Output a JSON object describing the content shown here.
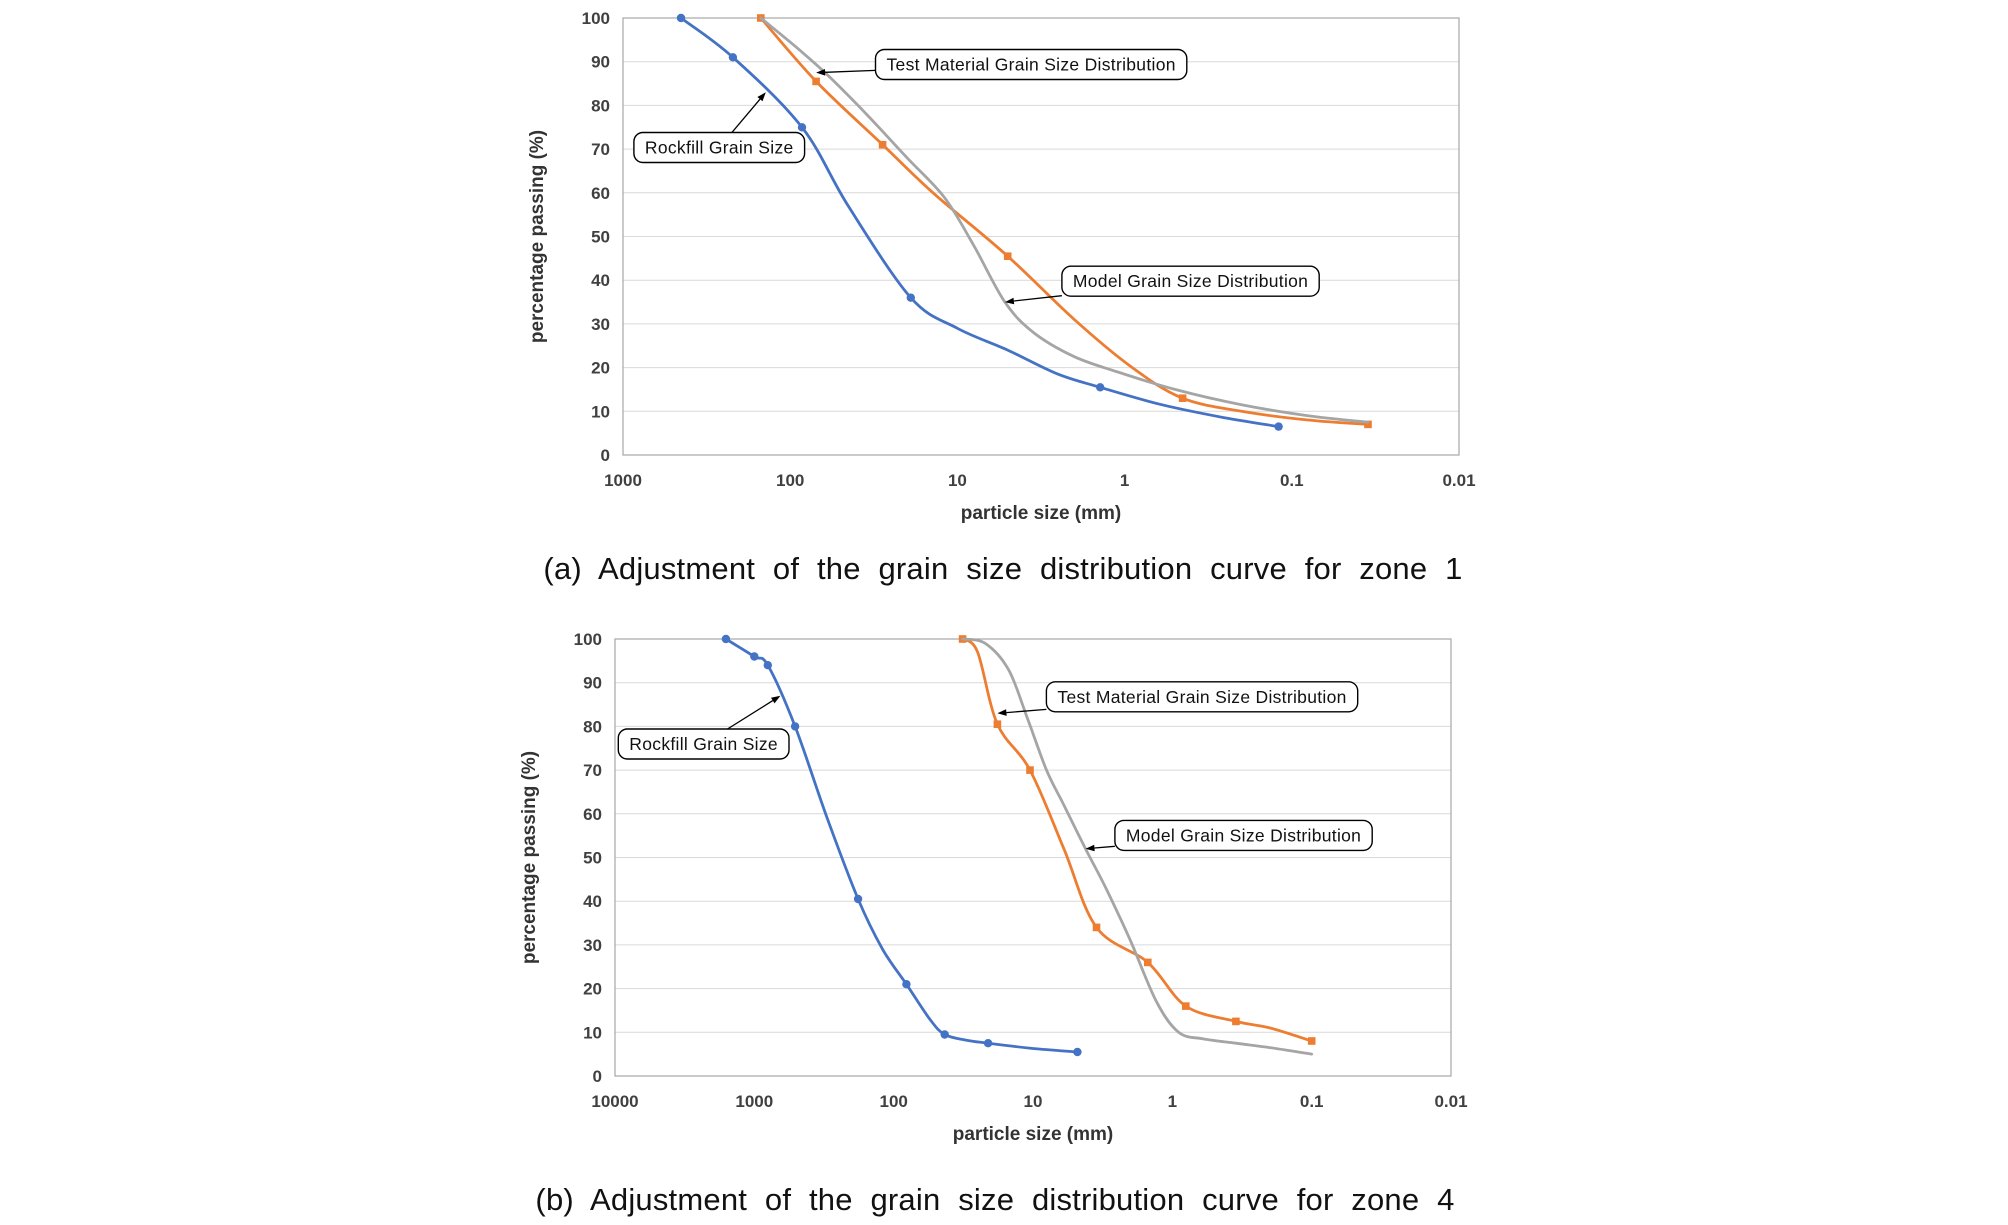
{
  "page": {
    "background": "#ffffff"
  },
  "theme": {
    "series_blue": "#4472C4",
    "series_orange": "#ED7D31",
    "series_gray": "#A5A5A5",
    "gridline": "#D9D9D9",
    "plot_border": "#A6A6A6",
    "tick_text": "#404040",
    "axis_title_text": "#333333",
    "annotation_border": "#000000"
  },
  "chart_data": [
    {
      "type": "line",
      "caption": "(a) Adjustment of the grain size distribution curve for zone 1",
      "xlabel": "particle size (mm)",
      "ylabel": "percentage passing (%)",
      "x_scale": "log-reversed",
      "x_ticks": [
        1000,
        100,
        10,
        1,
        0.1,
        0.01
      ],
      "y_ticks": [
        0,
        10,
        20,
        30,
        40,
        50,
        60,
        70,
        80,
        90,
        100
      ],
      "ylim": [
        0,
        100
      ],
      "grid": "horizontal",
      "legend": "annotation-callouts",
      "series": [
        {
          "name": "Rockfill Grain Size",
          "color": "#4472C4",
          "marker": "circle",
          "points": [
            [
              450,
              100
            ],
            [
              220,
              91
            ],
            [
              85,
              75
            ],
            [
              45,
              57
            ],
            [
              19,
              36
            ],
            [
              10,
              29
            ],
            [
              5,
              24
            ],
            [
              2.5,
              18.5
            ],
            [
              1.4,
              15.5
            ],
            [
              0.6,
              11.5
            ],
            [
              0.25,
              8.5
            ],
            [
              0.12,
              6.5
            ]
          ],
          "marker_points": [
            [
              450,
              100
            ],
            [
              220,
              91
            ],
            [
              85,
              75
            ],
            [
              19,
              36
            ],
            [
              1.4,
              15.5
            ],
            [
              0.12,
              6.5
            ]
          ]
        },
        {
          "name": "Test Material Grain Size Distribution",
          "color": "#ED7D31",
          "marker": "square",
          "points": [
            [
              150,
              100
            ],
            [
              70,
              85.5
            ],
            [
              28,
              71
            ],
            [
              14,
              60
            ],
            [
              5,
              45.5
            ],
            [
              2,
              31
            ],
            [
              0.9,
              20
            ],
            [
              0.45,
              13
            ],
            [
              0.2,
              10
            ],
            [
              0.08,
              8
            ],
            [
              0.035,
              7
            ]
          ],
          "marker_points": [
            [
              150,
              100
            ],
            [
              70,
              85.5
            ],
            [
              28,
              71
            ],
            [
              5,
              45.5
            ],
            [
              0.45,
              13
            ],
            [
              0.035,
              7
            ]
          ]
        },
        {
          "name": "Model Grain Size Distribution",
          "color": "#A5A5A5",
          "marker": "none",
          "points": [
            [
              150,
              100
            ],
            [
              90,
              93
            ],
            [
              60,
              87
            ],
            [
              35,
              78
            ],
            [
              20,
              68
            ],
            [
              12,
              59
            ],
            [
              8,
              48
            ],
            [
              5.2,
              35
            ],
            [
              3.5,
              28
            ],
            [
              2,
              22.5
            ],
            [
              1.1,
              19
            ],
            [
              0.5,
              15
            ],
            [
              0.2,
              11.5
            ],
            [
              0.08,
              9
            ],
            [
              0.035,
              7.5
            ]
          ],
          "marker_points": []
        }
      ],
      "annotations": [
        {
          "label": "Test Material Grain Size Distribution",
          "box_fx": 0.302,
          "box_fy": 0.072,
          "target_x": 70,
          "target_y": 87.5
        },
        {
          "label": "Rockfill Grain Size",
          "box_fx": 0.013,
          "box_fy": 0.262,
          "target_x": 140,
          "target_y": 83
        },
        {
          "label": "Model Grain Size Distribution",
          "box_fx": 0.525,
          "box_fy": 0.568,
          "target_x": 5.2,
          "target_y": 35
        }
      ]
    },
    {
      "type": "line",
      "caption": "(b) Adjustment of the grain size distribution curve for zone 4",
      "xlabel": "particle size (mm)",
      "ylabel": "percentage passing (%)",
      "x_scale": "log-reversed",
      "x_ticks": [
        10000,
        1000,
        100,
        10,
        1,
        0.1,
        0.01
      ],
      "y_ticks": [
        0,
        10,
        20,
        30,
        40,
        50,
        60,
        70,
        80,
        90,
        100
      ],
      "ylim": [
        0,
        100
      ],
      "grid": "horizontal",
      "legend": "annotation-callouts",
      "series": [
        {
          "name": "Rockfill Grain Size",
          "color": "#4472C4",
          "marker": "circle",
          "points": [
            [
              1600,
              100
            ],
            [
              1000,
              96
            ],
            [
              800,
              94
            ],
            [
              510,
              80
            ],
            [
              300,
              59
            ],
            [
              180,
              40.5
            ],
            [
              120,
              29
            ],
            [
              81,
              21
            ],
            [
              55,
              13
            ],
            [
              43,
              9.5
            ],
            [
              30,
              8.2
            ],
            [
              21,
              7.5
            ],
            [
              10,
              6.3
            ],
            [
              4.8,
              5.5
            ]
          ],
          "marker_points": [
            [
              1600,
              100
            ],
            [
              1000,
              96
            ],
            [
              800,
              94
            ],
            [
              510,
              80
            ],
            [
              180,
              40.5
            ],
            [
              81,
              21
            ],
            [
              43,
              9.5
            ],
            [
              21,
              7.5
            ],
            [
              4.8,
              5.5
            ]
          ]
        },
        {
          "name": "Test Material Grain Size Distribution",
          "color": "#ED7D31",
          "marker": "square",
          "points": [
            [
              32,
              100
            ],
            [
              25,
              97
            ],
            [
              18,
              80.5
            ],
            [
              10.5,
              70
            ],
            [
              6,
              52
            ],
            [
              3.5,
              34
            ],
            [
              1.5,
              26
            ],
            [
              0.8,
              16
            ],
            [
              0.35,
              12.5
            ],
            [
              0.2,
              11
            ],
            [
              0.1,
              8
            ]
          ],
          "marker_points": [
            [
              32,
              100
            ],
            [
              18,
              80.5
            ],
            [
              10.5,
              70
            ],
            [
              3.5,
              34
            ],
            [
              1.5,
              26
            ],
            [
              0.8,
              16
            ],
            [
              0.35,
              12.5
            ],
            [
              0.1,
              8
            ]
          ]
        },
        {
          "name": "Model Grain Size Distribution",
          "color": "#A5A5A5",
          "marker": "none",
          "points": [
            [
              32,
              100
            ],
            [
              22,
              99
            ],
            [
              15,
              93
            ],
            [
              11,
              82
            ],
            [
              8,
              70
            ],
            [
              6,
              62
            ],
            [
              4.2,
              52
            ],
            [
              3,
              43
            ],
            [
              2,
              31
            ],
            [
              1.3,
              17
            ],
            [
              0.9,
              10
            ],
            [
              0.6,
              8.5
            ],
            [
              0.35,
              7.5
            ],
            [
              0.2,
              6.5
            ],
            [
              0.1,
              5
            ]
          ],
          "marker_points": []
        }
      ],
      "annotations": [
        {
          "label": "Test Material Grain Size Distribution",
          "box_fx": 0.516,
          "box_fy": 0.098,
          "target_x": 18,
          "target_y": 83
        },
        {
          "label": "Rockfill Grain Size",
          "box_fx": 0.004,
          "box_fy": 0.206,
          "target_x": 650,
          "target_y": 87
        },
        {
          "label": "Model Grain Size Distribution",
          "box_fx": 0.598,
          "box_fy": 0.415,
          "target_x": 4.2,
          "target_y": 52
        }
      ]
    }
  ]
}
